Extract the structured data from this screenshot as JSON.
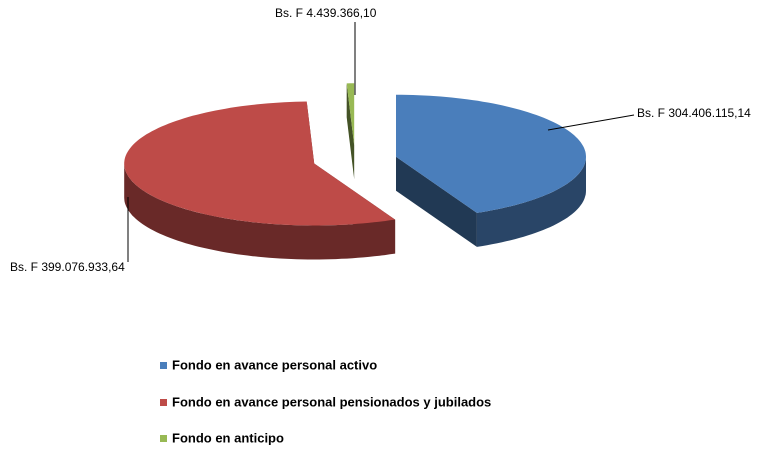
{
  "chart_data": {
    "type": "pie3d",
    "categories": [
      "Fondo en avance personal activo",
      "Fondo en avance personal pensionados y jubilados",
      "Fondo en anticipo"
    ],
    "values": [
      304406115.14,
      399076933.64,
      4439366.1
    ],
    "value_labels": [
      "Bs. F 304.406.115,14",
      "Bs. F 399.076.933,64",
      "Bs. F 4.439.366,10"
    ],
    "colors": [
      "#4a7ebb",
      "#be4b48",
      "#98b954"
    ],
    "legend": "bottom"
  }
}
